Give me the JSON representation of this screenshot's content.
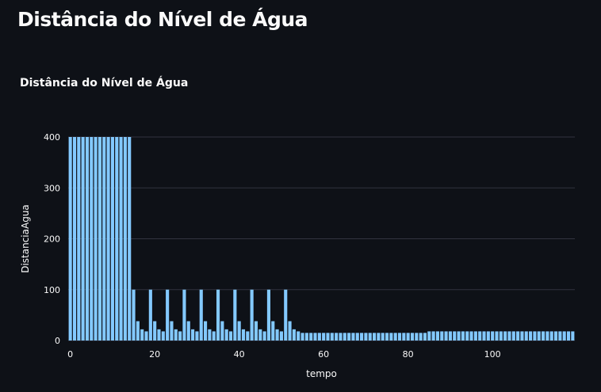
{
  "page": {
    "title": "Distância do Nível de Água"
  },
  "chart_data": {
    "type": "bar",
    "title": "Distância do Nível de Água",
    "xlabel": "tempo",
    "ylabel": "DistanciaAgua",
    "xlim": [
      -0.5,
      119.5
    ],
    "ylim": [
      0,
      400
    ],
    "xticks": [
      0,
      20,
      40,
      60,
      80,
      100
    ],
    "yticks": [
      0,
      100,
      200,
      300,
      400
    ],
    "grid": true,
    "bar_color": "#83c9ff",
    "x": [
      0,
      1,
      2,
      3,
      4,
      5,
      6,
      7,
      8,
      9,
      10,
      11,
      12,
      13,
      14,
      15,
      16,
      17,
      18,
      19,
      20,
      21,
      22,
      23,
      24,
      25,
      26,
      27,
      28,
      29,
      30,
      31,
      32,
      33,
      34,
      35,
      36,
      37,
      38,
      39,
      40,
      41,
      42,
      43,
      44,
      45,
      46,
      47,
      48,
      49,
      50,
      51,
      52,
      53,
      54,
      55,
      56,
      57,
      58,
      59,
      60,
      61,
      62,
      63,
      64,
      65,
      66,
      67,
      68,
      69,
      70,
      71,
      72,
      73,
      74,
      75,
      76,
      77,
      78,
      79,
      80,
      81,
      82,
      83,
      84,
      85,
      86,
      87,
      88,
      89,
      90,
      91,
      92,
      93,
      94,
      95,
      96,
      97,
      98,
      99,
      100,
      101,
      102,
      103,
      104,
      105,
      106,
      107,
      108,
      109,
      110,
      111,
      112,
      113,
      114,
      115,
      116,
      117,
      118,
      119
    ],
    "values": [
      400,
      400,
      400,
      400,
      400,
      400,
      400,
      400,
      400,
      400,
      400,
      400,
      400,
      400,
      400,
      100,
      38,
      22,
      18,
      100,
      38,
      22,
      18,
      100,
      38,
      22,
      18,
      100,
      38,
      22,
      18,
      100,
      38,
      22,
      18,
      100,
      38,
      22,
      18,
      100,
      38,
      22,
      18,
      100,
      38,
      22,
      18,
      100,
      38,
      22,
      18,
      100,
      38,
      22,
      18,
      15,
      15,
      15,
      15,
      15,
      15,
      15,
      15,
      15,
      15,
      15,
      15,
      15,
      15,
      15,
      15,
      15,
      15,
      15,
      15,
      15,
      15,
      15,
      15,
      15,
      15,
      15,
      15,
      15,
      15,
      18,
      18,
      18,
      18,
      18,
      18,
      18,
      18,
      18,
      18,
      18,
      18,
      18,
      18,
      18,
      18,
      18,
      18,
      18,
      18,
      18,
      18,
      18,
      18,
      18,
      18,
      18,
      18,
      18,
      18,
      18,
      18,
      18,
      18,
      18
    ]
  }
}
